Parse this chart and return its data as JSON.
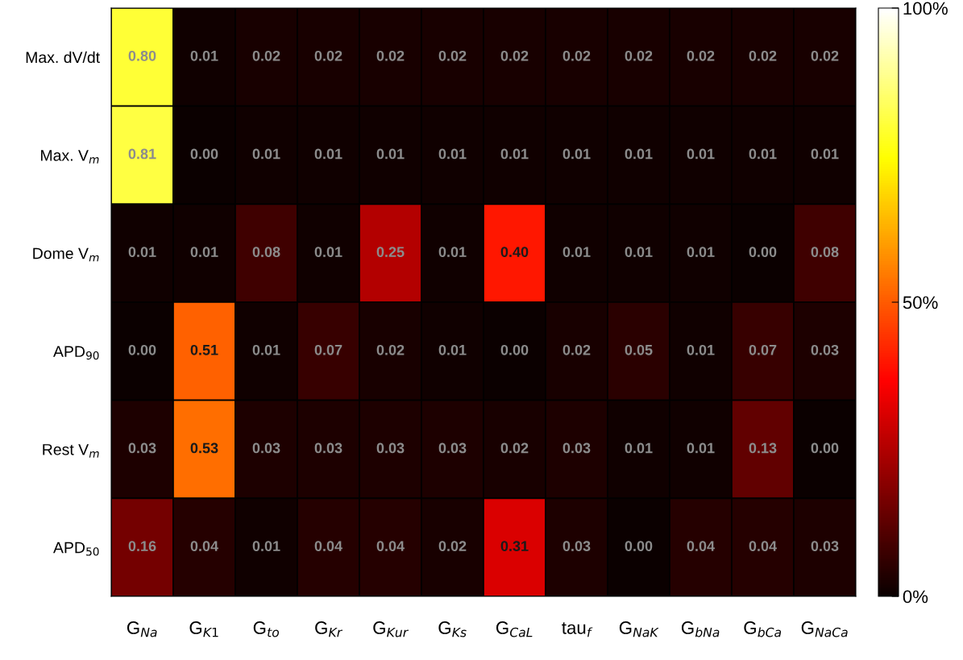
{
  "chart_data": {
    "type": "heatmap",
    "categories": [
      "G$_{Na}$",
      "G$_{K1}$",
      "G$_{to}$",
      "G$_{Kr}$",
      "G$_{Kur}$",
      "G$_{Ks}$",
      "G$_{CaL}$",
      "tau$_{f}$",
      "G$_{NaK}$",
      "G$_{bNa}$",
      "G$_{bCa}$",
      "G$_{NaCa}$"
    ],
    "y_categories": [
      "Max. dV/dt",
      "Max. V$_{m}$",
      "Dome V$_{m}$",
      "APD$_{90}$",
      "Rest V$_{m}$",
      "APD$_{50}$"
    ],
    "cells": [
      [
        0.8,
        0.01,
        0.02,
        0.02,
        0.02,
        0.02,
        0.02,
        0.02,
        0.02,
        0.02,
        0.02,
        0.02
      ],
      [
        0.81,
        0.0,
        0.01,
        0.01,
        0.01,
        0.01,
        0.01,
        0.01,
        0.01,
        0.01,
        0.01,
        0.01
      ],
      [
        0.01,
        0.01,
        0.08,
        0.01,
        0.25,
        0.01,
        0.4,
        0.01,
        0.01,
        0.01,
        0.0,
        0.08
      ],
      [
        0.0,
        0.51,
        0.01,
        0.07,
        0.02,
        0.01,
        0.0,
        0.02,
        0.05,
        0.01,
        0.07,
        0.03
      ],
      [
        0.03,
        0.53,
        0.03,
        0.03,
        0.03,
        0.03,
        0.02,
        0.03,
        0.01,
        0.01,
        0.13,
        0.0
      ],
      [
        0.16,
        0.04,
        0.01,
        0.04,
        0.04,
        0.02,
        0.31,
        0.03,
        0.0,
        0.04,
        0.04,
        0.03
      ]
    ],
    "cell_labels": [
      [
        "0.80",
        "0.01",
        "0.02",
        "0.02",
        "0.02",
        "0.02",
        "0.02",
        "0.02",
        "0.02",
        "0.02",
        "0.02",
        "0.02"
      ],
      [
        "0.81",
        "0.00",
        "0.01",
        "0.01",
        "0.01",
        "0.01",
        "0.01",
        "0.01",
        "0.01",
        "0.01",
        "0.01",
        "0.01"
      ],
      [
        "0.01",
        "0.01",
        "0.08",
        "0.01",
        "0.25",
        "0.01",
        "0.40",
        "0.01",
        "0.01",
        "0.01",
        "0.00",
        "0.08"
      ],
      [
        "0.00",
        "0.51",
        "0.01",
        "0.07",
        "0.02",
        "0.01",
        "0.00",
        "0.02",
        "0.05",
        "0.01",
        "0.07",
        "0.03"
      ],
      [
        "0.03",
        "0.53",
        "0.03",
        "0.03",
        "0.03",
        "0.03",
        "0.02",
        "0.03",
        "0.01",
        "0.01",
        "0.13",
        "0.00"
      ],
      [
        "0.16",
        "0.04",
        "0.01",
        "0.04",
        "0.04",
        "0.02",
        "0.31",
        "0.03",
        "0.00",
        "0.04",
        "0.04",
        "0.03"
      ]
    ],
    "clim": [
      0,
      1
    ],
    "cticks": [
      {
        "value": 0,
        "label": "0%"
      },
      {
        "value": 0.5,
        "label": "50%"
      },
      {
        "value": 1,
        "label": "100%"
      }
    ]
  }
}
